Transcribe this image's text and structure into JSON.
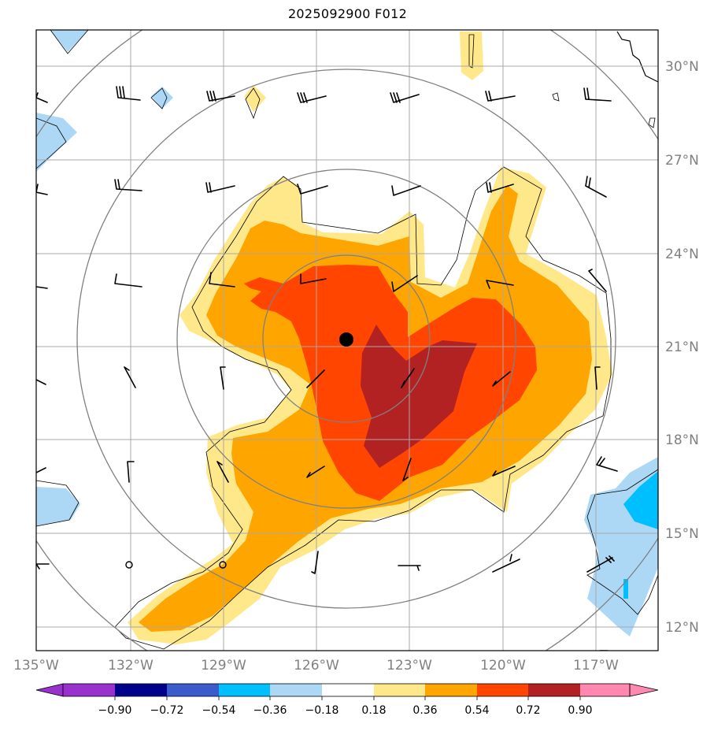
{
  "title": "2025092900 F012",
  "lat_labels": [
    "30°N",
    "27°N",
    "24°N",
    "21°N",
    "18°N",
    "15°N",
    "12°N"
  ],
  "lon_labels": [
    "135°W",
    "132°W",
    "129°W",
    "126°W",
    "123°W",
    "120°W",
    "117°W"
  ],
  "colorbar": {
    "ticks": [
      "−0.90",
      "−0.72",
      "−0.54",
      "−0.36",
      "−0.18",
      "0.18",
      "0.36",
      "0.54",
      "0.72",
      "0.90"
    ],
    "colors": [
      "#9932cc",
      "#00008b",
      "#3b5bcc",
      "#00bfff",
      "#add8f5",
      "#ffffff",
      "#ffe88a",
      "#ffa500",
      "#ff4500",
      "#b22222",
      "#ff87b0"
    ],
    "low_extend_color": "#9932cc",
    "high_extend_color": "#ff87b0"
  },
  "storm_center": {
    "lon": -125.0,
    "lat": 21.2
  },
  "colors": {
    "light_yellow": "#ffe88a",
    "orange": "#ffa500",
    "red_orange": "#ff4500",
    "firebrick": "#b22222",
    "light_blue": "#add8f5",
    "deep_sky_blue": "#00bfff",
    "grid": "#a9a9a9",
    "range_rings": "#808080"
  }
}
